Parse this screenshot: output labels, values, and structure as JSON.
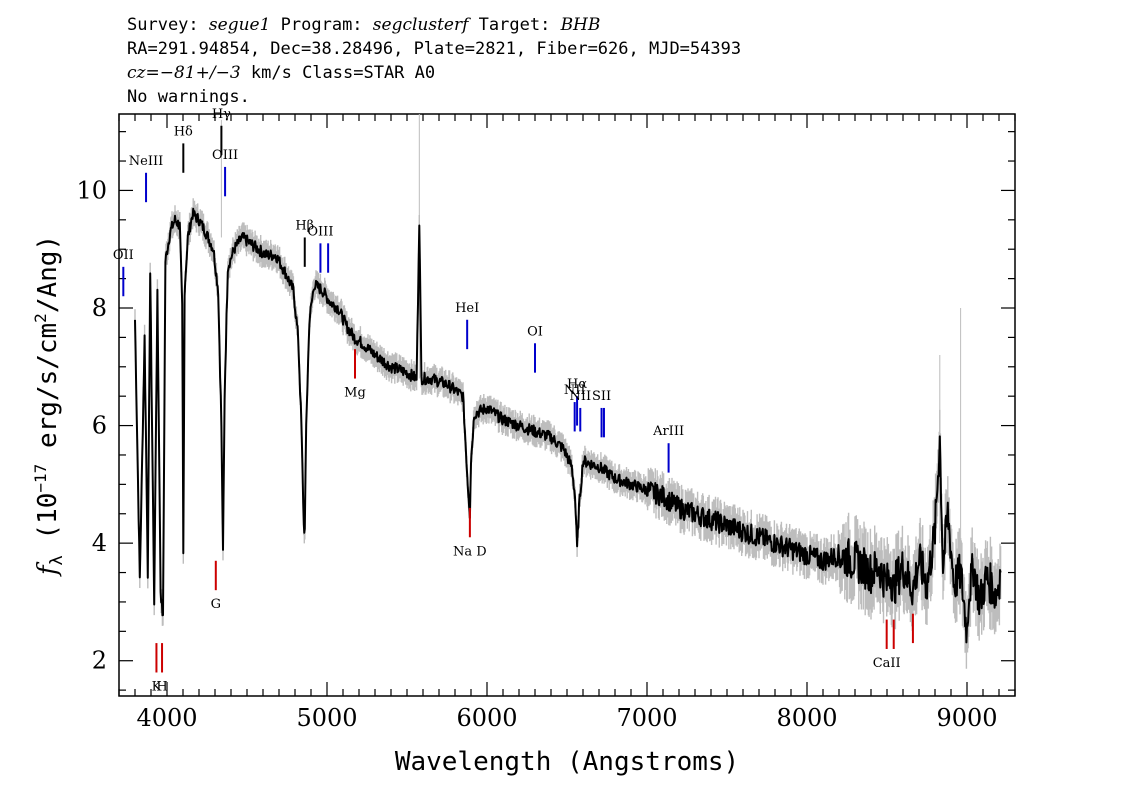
{
  "header": {
    "survey_label": "Survey:",
    "survey": "segue1",
    "program_label": "Program:",
    "program": "segclusterf",
    "target_label": "Target:",
    "target": "BHB",
    "line2": "RA=291.94854, Dec=38.28496, Plate=2821, Fiber=626, MJD=54393",
    "cz_label": "cz=",
    "cz_value": "−81+/−3",
    "cz_rest": " km/s Class=STAR A0",
    "line4": "No warnings."
  },
  "chart_data": {
    "type": "line",
    "xlabel": "Wavelength (Angstroms)",
    "ylabel_prefix": "f",
    "ylabel_sub": "λ",
    "ylabel_rest1": " (10",
    "ylabel_exp": "−17",
    "ylabel_rest2": " erg/s/cm",
    "ylabel_exp2": "2",
    "ylabel_rest3": "/Ang)",
    "xlim": [
      3700,
      9300
    ],
    "ylim": [
      1.4,
      11.3
    ],
    "xticks": [
      4000,
      5000,
      6000,
      7000,
      8000,
      9000
    ],
    "yticks": [
      2,
      4,
      6,
      8,
      10
    ],
    "grid": false,
    "series": [
      {
        "x": [
          3800,
          3830,
          3860,
          3880,
          3895,
          3920,
          3940,
          3960,
          3975,
          3990,
          4020,
          4050,
          4080,
          4095,
          4102,
          4110,
          4130,
          4160,
          4200,
          4240,
          4290,
          4320,
          4340,
          4350,
          4360,
          4380,
          4420,
          4470,
          4520,
          4570,
          4620,
          4680,
          4740,
          4790,
          4820,
          4840,
          4855,
          4861,
          4870,
          4890,
          4920,
          4970,
          5020,
          5070,
          5120,
          5170,
          5220,
          5300,
          5400,
          5500,
          5560,
          5577,
          5590,
          5650,
          5750,
          5850,
          5880,
          5893,
          5900,
          5920,
          6000,
          6100,
          6200,
          6300,
          6400,
          6480,
          6530,
          6550,
          6563,
          6575,
          6600,
          6700,
          6800,
          6900,
          7000,
          7100,
          7200,
          7300,
          7400,
          7500,
          7600,
          7700,
          7800,
          7900,
          8000,
          8100,
          8200,
          8300,
          8400,
          8450,
          8498,
          8520,
          8542,
          8560,
          8600,
          8662,
          8700,
          8750,
          8800,
          8830,
          8850,
          8880,
          8920,
          8960,
          9000,
          9010,
          9040,
          9080,
          9120,
          9150,
          9180,
          9210
        ],
        "y": [
          7.8,
          3.4,
          7.5,
          3.5,
          8.6,
          3.0,
          8.3,
          3.2,
          2.7,
          8.8,
          9.3,
          9.5,
          9.4,
          8.0,
          3.8,
          8.3,
          9.2,
          9.6,
          9.5,
          9.3,
          9.0,
          8.3,
          6.0,
          3.8,
          6.5,
          8.7,
          9.0,
          9.2,
          9.1,
          9.0,
          8.9,
          8.9,
          8.6,
          8.3,
          7.5,
          6.0,
          4.3,
          4.2,
          6.0,
          7.8,
          8.4,
          8.3,
          8.1,
          8.0,
          7.7,
          7.5,
          7.4,
          7.2,
          7.0,
          6.9,
          6.8,
          9.5,
          6.8,
          6.8,
          6.7,
          6.5,
          5.0,
          4.5,
          5.4,
          6.2,
          6.3,
          6.1,
          6.0,
          5.9,
          5.8,
          5.6,
          5.3,
          4.8,
          3.9,
          4.6,
          5.4,
          5.3,
          5.1,
          5.0,
          4.9,
          4.8,
          4.6,
          4.5,
          4.4,
          4.3,
          4.2,
          4.1,
          4.0,
          3.9,
          3.8,
          3.7,
          3.8,
          3.7,
          3.5,
          3.6,
          3.3,
          3.5,
          3.2,
          3.4,
          3.6,
          3.2,
          3.7,
          3.3,
          4.2,
          5.8,
          3.6,
          4.5,
          3.3,
          3.5,
          2.5,
          3.1,
          3.6,
          3.0,
          3.4,
          3.3,
          3.1,
          3.5
        ]
      }
    ],
    "lines": [
      {
        "label": "OII",
        "wave": 3727,
        "color": "#0000cc",
        "side": "top",
        "y0": 8.2,
        "y1": 8.7
      },
      {
        "label": "NeIII",
        "wave": 3869,
        "color": "#0000cc",
        "side": "top",
        "y0": 9.8,
        "y1": 10.3
      },
      {
        "label": "Hδ",
        "wave": 4102,
        "color": "#000000",
        "side": "top",
        "y0": 10.3,
        "y1": 10.8
      },
      {
        "label": "Hγ",
        "wave": 4340,
        "color": "#000000",
        "side": "top",
        "y0": 10.6,
        "y1": 11.1
      },
      {
        "label": "OIII",
        "wave": 4363,
        "color": "#0000cc",
        "side": "top",
        "y0": 9.9,
        "y1": 10.4
      },
      {
        "label": "Hβ",
        "wave": 4861,
        "color": "#000000",
        "side": "top",
        "y0": 8.7,
        "y1": 9.2
      },
      {
        "label": "OIII",
        "wave": 4959,
        "color": "#0000cc",
        "side": "top",
        "y0": 8.6,
        "y1": 9.1
      },
      {
        "label": "",
        "wave": 5007,
        "color": "#0000cc",
        "side": "top",
        "y0": 8.6,
        "y1": 9.1
      },
      {
        "label": "HeI",
        "wave": 5876,
        "color": "#0000cc",
        "side": "top",
        "y0": 7.3,
        "y1": 7.8
      },
      {
        "label": "OI",
        "wave": 6300,
        "color": "#0000cc",
        "side": "top",
        "y0": 6.9,
        "y1": 7.4
      },
      {
        "label": "NII",
        "wave": 6548,
        "color": "#0000cc",
        "side": "top",
        "y0": 5.9,
        "y1": 6.4
      },
      {
        "label": "Hα",
        "wave": 6563,
        "color": "#0000cc",
        "side": "top",
        "y0": 6.0,
        "y1": 6.5
      },
      {
        "label": "NII",
        "wave": 6583,
        "color": "#0000cc",
        "side": "top",
        "y0": 5.9,
        "y1": 6.3
      },
      {
        "label": "SII",
        "wave": 6716,
        "color": "#0000cc",
        "side": "top",
        "y0": 5.8,
        "y1": 6.3
      },
      {
        "label": "",
        "wave": 6731,
        "color": "#0000cc",
        "side": "top",
        "y0": 5.8,
        "y1": 6.3
      },
      {
        "label": "ArIII",
        "wave": 7135,
        "color": "#0000cc",
        "side": "top",
        "y0": 5.2,
        "y1": 5.7
      },
      {
        "label": "Mg",
        "wave": 5175,
        "color": "#cc0000",
        "side": "bottom",
        "y0": 6.8,
        "y1": 7.3
      },
      {
        "label": "Na D",
        "wave": 5893,
        "color": "#cc0000",
        "side": "bottom",
        "y0": 4.1,
        "y1": 4.6
      },
      {
        "label": "G",
        "wave": 4305,
        "color": "#cc0000",
        "side": "bottom",
        "y0": 3.2,
        "y1": 3.7
      },
      {
        "label": "K",
        "wave": 3934,
        "color": "#cc0000",
        "side": "bottom",
        "y0": 1.8,
        "y1": 2.3
      },
      {
        "label": "H",
        "wave": 3969,
        "color": "#cc0000",
        "side": "bottom",
        "y0": 1.8,
        "y1": 2.3
      },
      {
        "label": "CaII",
        "wave": 8498,
        "color": "#cc0000",
        "side": "bottom",
        "y0": 2.2,
        "y1": 2.7
      },
      {
        "label": "",
        "wave": 8542,
        "color": "#cc0000",
        "side": "bottom",
        "y0": 2.2,
        "y1": 2.7
      },
      {
        "label": "",
        "wave": 8662,
        "color": "#cc0000",
        "side": "bottom",
        "y0": 2.3,
        "y1": 2.8
      }
    ]
  }
}
